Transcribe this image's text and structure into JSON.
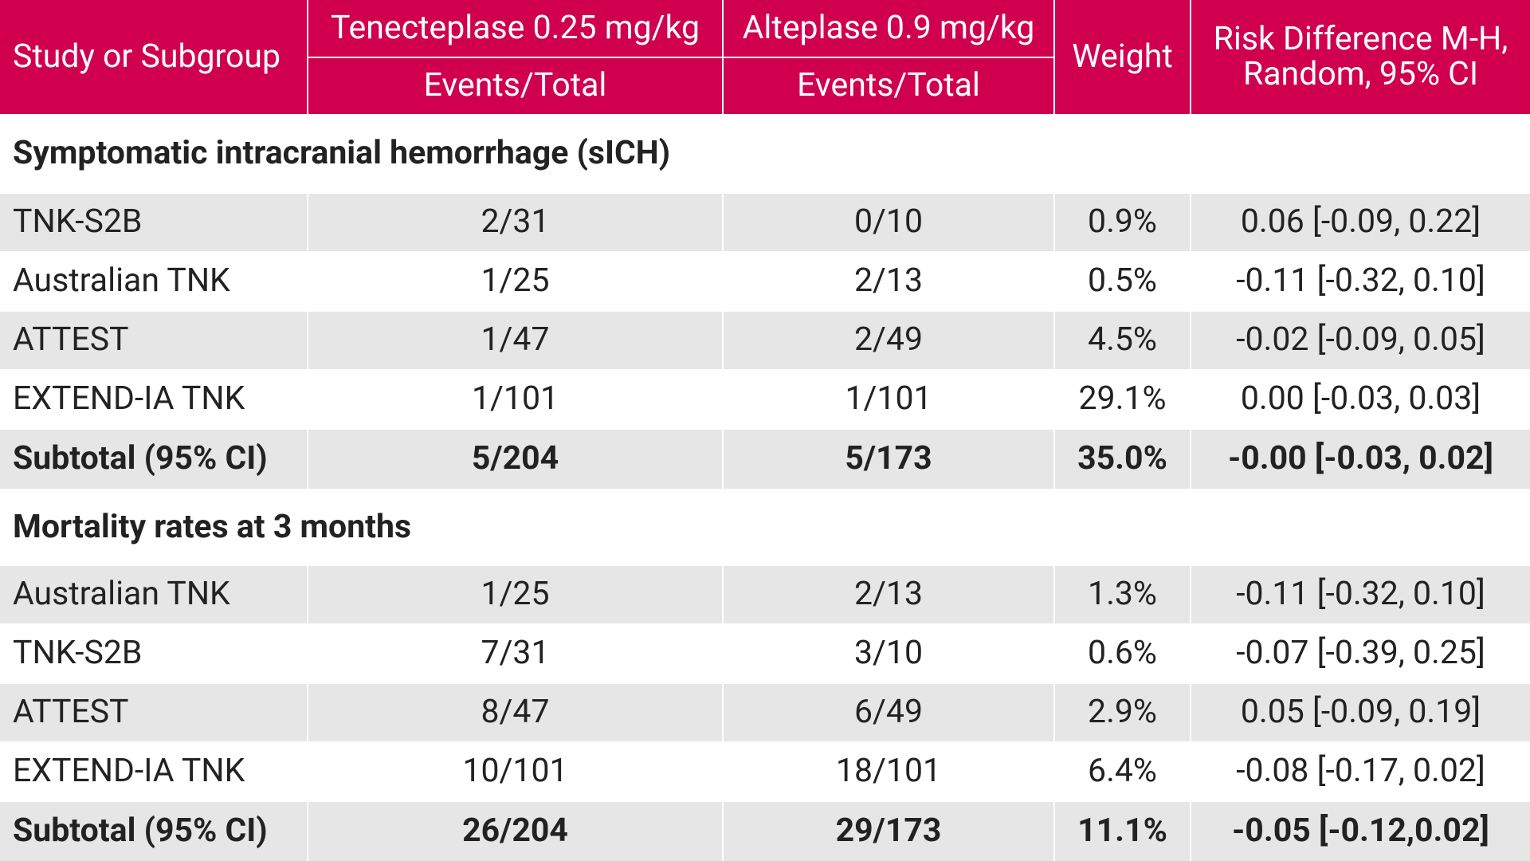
{
  "header": {
    "study": "Study or Subgroup",
    "groups": [
      "Tenecteplase 0.25 mg/kg",
      "Alteplase 0.9 mg/kg"
    ],
    "subheaders": [
      "Events/Total",
      "Events/Total"
    ],
    "weight": "Weight",
    "risk_difference": [
      "Risk Difference M-H,",
      "Random, 95% CI"
    ]
  },
  "sections": [
    {
      "title": "Symptomatic intracranial hemorrhage (sICH)",
      "rows": [
        [
          "TNK-S2B",
          "2/31",
          "0/10",
          "0.9%",
          "0.06 [-0.09, 0.22]"
        ],
        [
          "Australian TNK",
          "1/25",
          "2/13",
          "0.5%",
          "-0.11 [-0.32, 0.10]"
        ],
        [
          "ATTEST",
          "1/47",
          "2/49",
          "4.5%",
          "-0.02 [-0.09, 0.05]"
        ],
        [
          "EXTEND-IA TNK",
          "1/101",
          "1/101",
          "29.1%",
          "0.00 [-0.03, 0.03]"
        ]
      ],
      "subtotal": [
        "Subtotal (95% CI)",
        "5/204",
        "5/173",
        "35.0%",
        "-0.00 [-0.03, 0.02]"
      ]
    },
    {
      "title": "Mortality rates at 3 months",
      "rows": [
        [
          "Australian TNK",
          "1/25",
          "2/13",
          "1.3%",
          "-0.11 [-0.32, 0.10]"
        ],
        [
          "TNK-S2B",
          "7/31",
          "3/10",
          "0.6%",
          "-0.07 [-0.39, 0.25]"
        ],
        [
          "ATTEST",
          "8/47",
          "6/49",
          "2.9%",
          "0.05 [-0.09, 0.19]"
        ],
        [
          "EXTEND-IA TNK",
          "10/101",
          "18/101",
          "6.4%",
          "-0.08 [-0.17, 0.02]"
        ]
      ],
      "subtotal": [
        "Subtotal (95% CI)",
        "26/204",
        "29/173",
        "11.1%",
        "-0.05 [-0.12,0.02]"
      ]
    }
  ]
}
